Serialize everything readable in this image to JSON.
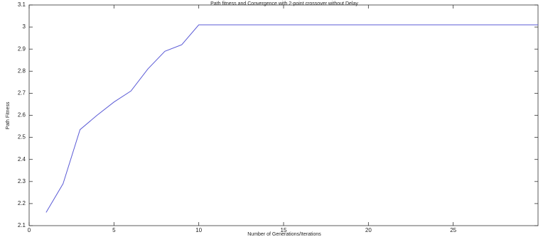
{
  "chart_data": {
    "type": "line",
    "title": "Path fitness and Convergence with 2-point crossover without Delay",
    "xlabel": "Number of Generations/Iterations",
    "ylabel": "Path Fitness",
    "x": [
      1,
      2,
      3,
      4,
      5,
      6,
      7,
      8,
      9,
      10,
      30
    ],
    "series": [
      {
        "color": "#5b5bd6",
        "values": [
          2.16,
          2.29,
          2.535,
          2.6,
          2.66,
          2.71,
          2.81,
          2.89,
          2.92,
          3.01,
          3.01
        ]
      }
    ],
    "xlim": [
      0,
      30
    ],
    "xticks": [
      0,
      5,
      10,
      15,
      20,
      25
    ],
    "ylim": [
      2.1,
      3.1
    ],
    "yticks": [
      2.1,
      2.2,
      2.3,
      2.4,
      2.5,
      2.6,
      2.7,
      2.8,
      2.9,
      3,
      3.1
    ],
    "grid": false
  }
}
